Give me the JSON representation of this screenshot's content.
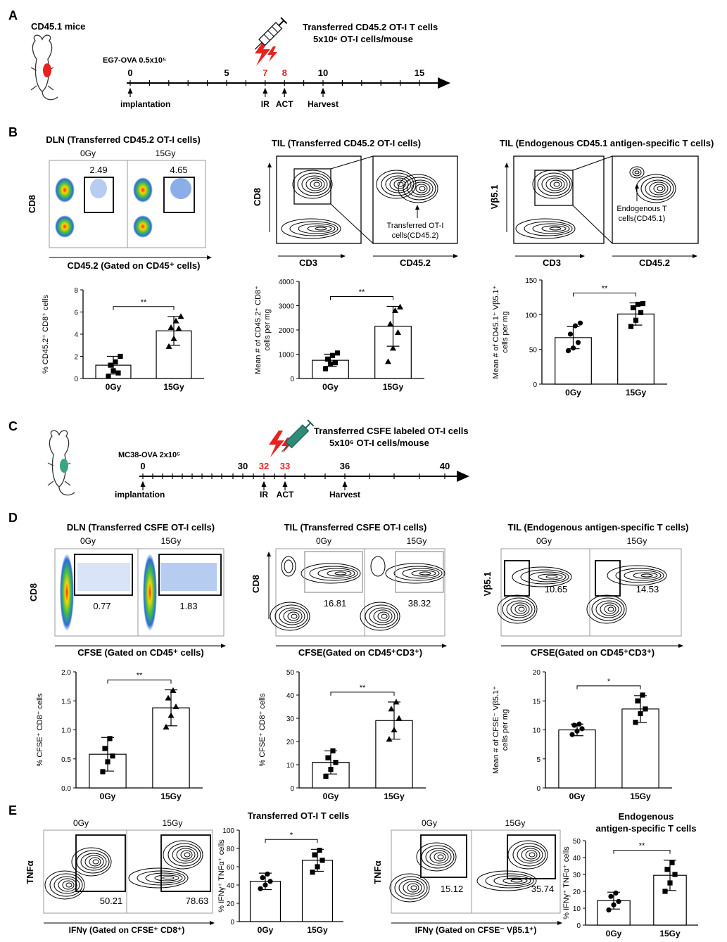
{
  "colors": {
    "tumor_a": "#e8231f",
    "tumor_c": "#3aa57f",
    "timepoint_red": "#e8231f",
    "ink": "#000000",
    "bar_fill": "#ffffff",
    "syringe_green": "#2e8b77"
  },
  "icons": {
    "mouse_a": "mouse-icon",
    "mouse_c": "mouse-icon",
    "lightning": "lightning-icon",
    "syringe": "syringe-icon"
  },
  "panel_a": {
    "letter": "A",
    "mouse_label": "CD45.1 mice",
    "tumor_label": "EG7-OVA 0.5x10⁵",
    "transfer_line1": "Transferred CD45.2 OT-I T cells",
    "transfer_line2": "5x10⁶ OT-I cells/mouse",
    "ticks": [
      "0",
      "5",
      "7",
      "8",
      "10",
      "15"
    ],
    "events": [
      "implantation",
      "IR",
      "ACT",
      "Harvest"
    ]
  },
  "panel_b": {
    "letter": "B",
    "titles": [
      "DLN (Transferred CD45.2 OT-I cells)",
      "TIL (Transferred CD45.2 OT-I cells)",
      "TIL (Endogenous CD45.1 antigen-specific T cells)"
    ],
    "dln_groups": [
      "0Gy",
      "15Gy"
    ],
    "dln_values": [
      "2.49",
      "4.65"
    ],
    "dln_ylabel": "CD8",
    "dln_xlabel": "CD45.2 (Gated on CD45⁺ cells)",
    "til_ylabel": "CD8",
    "til_xlabel1": "CD3",
    "til_xlabel2": "CD45.2",
    "til_arrow_label1": "Transferred OT-I",
    "til_arrow_label2": "cells(CD45.2)",
    "endo_ylabel": "Vβ5.1",
    "endo_xlabel1": "CD3",
    "endo_xlabel2": "CD45.2",
    "endo_arrow_label1": "Endogenous T",
    "endo_arrow_label2": "cells(CD45.1)"
  },
  "panel_c": {
    "letter": "C",
    "tumor_label": "MC38-OVA 2x10⁵",
    "transfer_line1": "Transferred CSFE labeled OT-I cells",
    "transfer_line2": "5x10⁶ OT-I cells/mouse",
    "ticks": [
      "0",
      "30",
      "32",
      "33",
      "36",
      "40"
    ],
    "events": [
      "implantation",
      "IR",
      "ACT",
      "Harvest"
    ]
  },
  "panel_d": {
    "letter": "D",
    "titles": [
      "DLN (Transferred CSFE OT-I cells)",
      "TIL (Transferred CSFE OT-I cells)",
      "TIL (Endogenous antigen-specific T cells)"
    ],
    "groups": [
      "0Gy",
      "15Gy"
    ],
    "dln_values": [
      "0.77",
      "1.83"
    ],
    "til_values": [
      "16.81",
      "38.32"
    ],
    "endo_values": [
      "10.65",
      "14.53"
    ],
    "ylabels": [
      "CD8",
      "CD8",
      "Vβ5.1"
    ],
    "xlabels": [
      "CFSE (Gated on CD45⁺ cells)",
      "CFSE(Gated on CD45⁺CD3⁺)",
      "CFSE(Gated on CD45⁺CD3⁺)"
    ]
  },
  "panel_e": {
    "letter": "E",
    "groups": [
      "0Gy",
      "15Gy"
    ],
    "left_values": [
      "50.21",
      "78.63"
    ],
    "right_values": [
      "15.12",
      "35.74"
    ],
    "ylabel": "TNFα",
    "left_xlabel": "IFNγ (Gated on CFSE⁺ CD8⁺)",
    "right_xlabel": "IFNγ (Gated on CFSE⁻ Vβ5.1⁺)",
    "bar_title_left": "Transferred OT-I T cells",
    "bar_title_right_1": "Endogenous",
    "bar_title_right_2": "antigen-specific T cells"
  },
  "chart_data": [
    {
      "id": "b1",
      "type": "bar",
      "title": "",
      "categories": [
        "0Gy",
        "15Gy"
      ],
      "values": [
        1.2,
        4.3
      ],
      "errors": [
        0.8,
        1.3
      ],
      "ylim": [
        0,
        8
      ],
      "yticks": [
        0,
        2,
        4,
        6,
        8
      ],
      "ylabel": "% CD45.2⁺ CD8⁺ cells",
      "xlabel": "",
      "sig": "**",
      "marker": "square-triangle",
      "points": [
        [
          0.2,
          0.7,
          0.5,
          1.2,
          1.5,
          2.0
        ],
        [
          2.9,
          3.6,
          4.5,
          4.6,
          5.2,
          5.6
        ]
      ]
    },
    {
      "id": "b2",
      "type": "bar",
      "title": "",
      "categories": [
        "0Gy",
        "15Gy"
      ],
      "values": [
        750,
        2150
      ],
      "errors": [
        250,
        820
      ],
      "ylim": [
        0,
        4000
      ],
      "yticks": [
        0,
        1000,
        2000,
        3000,
        4000
      ],
      "ylabel_lines": [
        "Mean # of CD45.2⁺ CD8⁺",
        "cells per mg"
      ],
      "xlabel": "",
      "sig": "**",
      "marker": "square-triangle",
      "points": [
        [
          400,
          600,
          650,
          800,
          950,
          1050
        ],
        [
          700,
          1250,
          1900,
          2250,
          2800,
          2950
        ]
      ]
    },
    {
      "id": "b3",
      "type": "bar",
      "title": "",
      "categories": [
        "0Gy",
        "15Gy"
      ],
      "values": [
        67,
        101
      ],
      "errors": [
        16,
        16
      ],
      "ylim": [
        0,
        150
      ],
      "yticks": [
        0,
        50,
        100,
        150
      ],
      "ylabel_lines": [
        "Mean # of CD45.1⁺ Vβ5.1⁺",
        "cells per mg"
      ],
      "xlabel": "",
      "sig": "**",
      "marker": "circle-square",
      "points": [
        [
          48,
          52,
          60,
          72,
          84,
          88
        ],
        [
          83,
          92,
          103,
          110,
          115,
          116
        ]
      ]
    },
    {
      "id": "d1",
      "type": "bar",
      "title": "",
      "categories": [
        "0Gy",
        "15Gy"
      ],
      "values": [
        0.58,
        1.38
      ],
      "errors": [
        0.29,
        0.31
      ],
      "ylim": [
        0,
        2.0
      ],
      "yticks": [
        0.0,
        0.5,
        1.0,
        1.5,
        2.0
      ],
      "ylabel": "% CFSE⁺ CD8⁺ cells",
      "xlabel": "",
      "sig": "**",
      "marker": "square-triangle",
      "points": [
        [
          0.28,
          0.45,
          0.55,
          0.68,
          0.85
        ],
        [
          1.05,
          1.25,
          1.4,
          1.55,
          1.68
        ]
      ]
    },
    {
      "id": "d2",
      "type": "bar",
      "title": "",
      "categories": [
        "0Gy",
        "15Gy"
      ],
      "values": [
        11,
        29
      ],
      "errors": [
        5,
        8
      ],
      "ylim": [
        0,
        50
      ],
      "yticks": [
        0,
        10,
        20,
        30,
        40,
        50
      ],
      "ylabel": "% CFSE⁺ CD8⁺ cells",
      "xlabel": "",
      "sig": "**",
      "marker": "square-triangle",
      "points": [
        [
          5,
          8,
          11,
          13,
          16
        ],
        [
          21,
          25,
          30,
          34,
          37
        ]
      ]
    },
    {
      "id": "d3",
      "type": "bar",
      "title": "",
      "categories": [
        "0Gy",
        "15Gy"
      ],
      "values": [
        10,
        13.6
      ],
      "errors": [
        1,
        2.3
      ],
      "ylim": [
        0,
        20
      ],
      "yticks": [
        0,
        5,
        10,
        15,
        20
      ],
      "ylabel_lines": [
        "Mean # of CFSE⁻ Vβ5.1⁺",
        "cells per mg"
      ],
      "xlabel": "",
      "sig": "*",
      "marker": "circle-square",
      "points": [
        [
          9.2,
          9.8,
          10.2,
          10.8,
          11.0
        ],
        [
          11.3,
          12.8,
          13.6,
          15.0,
          16.0
        ]
      ]
    },
    {
      "id": "e1",
      "type": "bar",
      "title": "Transferred OT-I T cells",
      "categories": [
        "0Gy",
        "15Gy"
      ],
      "values": [
        44,
        67
      ],
      "errors": [
        9,
        12
      ],
      "ylim": [
        0,
        100
      ],
      "yticks": [
        0,
        20,
        40,
        60,
        80,
        100
      ],
      "ylabel": "% IFNγ⁺ TNFα⁺ cells",
      "xlabel": "",
      "sig": "*",
      "marker": "circle-square",
      "points": [
        [
          36,
          40,
          44,
          48,
          52
        ],
        [
          54,
          60,
          67,
          73,
          78
        ]
      ]
    },
    {
      "id": "e2",
      "type": "bar",
      "title": "Endogenous antigen-specific T cells",
      "categories": [
        "0Gy",
        "15Gy"
      ],
      "values": [
        14.5,
        29.5
      ],
      "errors": [
        5,
        9
      ],
      "ylim": [
        0,
        50
      ],
      "yticks": [
        0,
        10,
        20,
        30,
        40,
        50
      ],
      "ylabel": "% IFNγ⁺ TNFα⁺ cells",
      "xlabel": "",
      "sig": "**",
      "marker": "circle-square",
      "points": [
        [
          9,
          12,
          14,
          17,
          19
        ],
        [
          20,
          25,
          30,
          33,
          37
        ]
      ]
    }
  ]
}
